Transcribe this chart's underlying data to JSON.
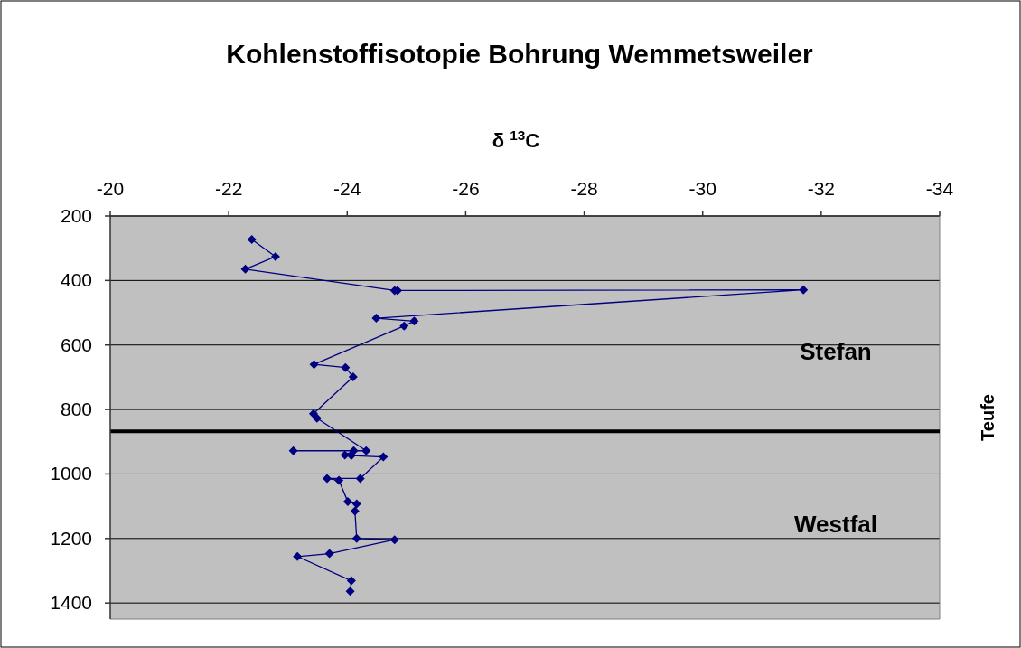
{
  "chart_data": {
    "type": "line",
    "title": "Kohlenstoffisotopie Bohrung Wemmetsweiler",
    "xlabel": "δ $^{13}$C",
    "ylabel": "Teufe",
    "xlim": [
      -20,
      -34
    ],
    "xticks": [
      -20,
      -22,
      -24,
      -26,
      -28,
      -30,
      -32,
      -34
    ],
    "ylim": [
      1450,
      200
    ],
    "yticks": [
      200,
      400,
      600,
      800,
      1000,
      1200,
      1400
    ],
    "grid": "y",
    "marker": "diamond",
    "line_style": "solid",
    "ref_lines": [
      {
        "axis": "y",
        "value": 868,
        "color": "#000000"
      }
    ],
    "annotations": [
      "Stefan",
      "Westfal"
    ],
    "series": [
      {
        "color": "#000080",
        "x": [
          -22.39,
          -22.79,
          -22.28,
          -24.8,
          -24.85,
          -31.7,
          -24.49,
          -25.13,
          -24.96,
          -23.44,
          -23.97,
          -24.1,
          -23.43,
          -23.49,
          -24.32,
          -23.09,
          -24.11,
          -23.96,
          -24.07,
          -24.61,
          -24.22,
          -23.66,
          -23.86,
          -24.01,
          -24.16,
          -24.13,
          -24.16,
          -24.8,
          -23.7,
          -23.16,
          -24.07,
          -24.05
        ],
        "values": [
          273,
          326,
          365,
          431,
          431,
          429,
          517,
          526,
          541,
          660,
          670,
          699,
          813,
          827,
          928,
          928,
          928,
          941,
          943,
          947,
          1014,
          1014,
          1020,
          1086,
          1093,
          1115,
          1200,
          1204,
          1247,
          1256,
          1331,
          1364
        ]
      }
    ]
  }
}
